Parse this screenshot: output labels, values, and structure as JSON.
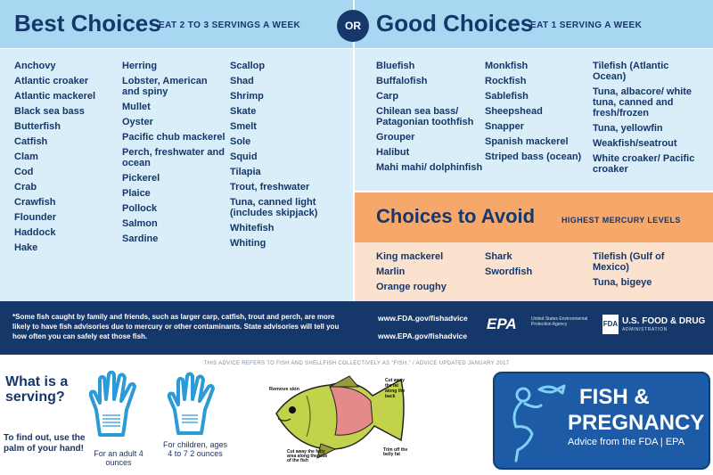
{
  "best": {
    "title": "Best Choices",
    "subtitle": "EAT 2 TO 3 SERVINGS A WEEK",
    "columns": [
      [
        "Anchovy",
        "Atlantic croaker",
        "Atlantic mackerel",
        "Black sea bass",
        "Butterfish",
        "Catfish",
        "Clam",
        "Cod",
        "Crab",
        "Crawfish",
        "Flounder",
        "Haddock",
        "Hake"
      ],
      [
        "Herring",
        "Lobster, American and spiny",
        "Mullet",
        "Oyster",
        "Pacific chub mackerel",
        "Perch, freshwater and ocean",
        "Pickerel",
        "Plaice",
        "Pollock",
        "Salmon",
        "Sardine"
      ],
      [
        "Scallop",
        "Shad",
        "Shrimp",
        "Skate",
        "Smelt",
        "Sole",
        "Squid",
        "Tilapia",
        "Trout, freshwater",
        "Tuna, canned light (includes skipjack)",
        "Whitefish",
        "Whiting"
      ]
    ]
  },
  "or_label": "OR",
  "good": {
    "title": "Good Choices",
    "subtitle": "EAT 1 SERVING A WEEK",
    "columns": [
      [
        "Bluefish",
        "Buffalofish",
        "Carp",
        "Chilean sea bass/ Patagonian toothfish",
        "Grouper",
        "Halibut",
        "Mahi mahi/ dolphinfish"
      ],
      [
        "Monkfish",
        "Rockfish",
        "Sablefish",
        "Sheepshead",
        "Snapper",
        "Spanish mackerel",
        "Striped bass (ocean)"
      ],
      [
        "Tilefish (Atlantic Ocean)",
        "Tuna, albacore/ white tuna, canned and fresh/frozen",
        "Tuna, yellowfin",
        "Weakfish/seatrout",
        "White croaker/ Pacific croaker"
      ]
    ]
  },
  "avoid": {
    "title": "Choices to Avoid",
    "subtitle": "HIGHEST MERCURY LEVELS",
    "columns": [
      [
        "King mackerel",
        "Marlin",
        "Orange roughy"
      ],
      [
        "Shark",
        "Swordfish"
      ],
      [
        "Tilefish (Gulf of Mexico)",
        "Tuna, bigeye"
      ]
    ]
  },
  "footer": {
    "note": "*Some fish caught by family and friends, such as larger carp, catfish, trout and perch, are more likely to have fish advisories due to mercury or other contaminants. State advisories will tell you how often you can safely eat those fish.",
    "fda_url": "www.FDA.gov/fishadvice",
    "epa_url": "www.EPA.gov/fishadvice",
    "epa_logo": "EPA",
    "epa_name": "United States Environmental Protection Agency",
    "fda_mark": "FDA",
    "fda_name": "U.S. FOOD & DRUG",
    "fda_admin": "ADMINISTRATION"
  },
  "advice_note": "THIS ADVICE REFERS TO FISH AND SHELLFISH COLLECTIVELY AS \"FISH.\" / ADVICE UPDATED JANUARY 2017",
  "serving": {
    "question": "What is a serving?",
    "answer": "To find out, use the palm of your hand!",
    "adult_caption": "For an adult 4 ounces",
    "child_caption": "For children, ages 4 to 7 2 ounces"
  },
  "diagram": {
    "remove_skin": "Remove skin",
    "cut_fat_back": "Cut away the fat along the back",
    "cut_fat_side": "Cut away the fatty area along the side of the fish",
    "trim_belly": "Trim off the belly fat"
  },
  "brand": {
    "line1": "FISH &",
    "line2": "PREGNANCY",
    "tagline": "Advice from the FDA | EPA"
  },
  "colors": {
    "navy": "#16376a",
    "light_blue": "#d9eef9",
    "header_blue": "#a8d7f1",
    "avoid_orange": "#f6a86a",
    "avoid_light": "#fbe2cf",
    "hand_blue": "#2a9bd6",
    "brand_blue": "#1d5ba6"
  }
}
